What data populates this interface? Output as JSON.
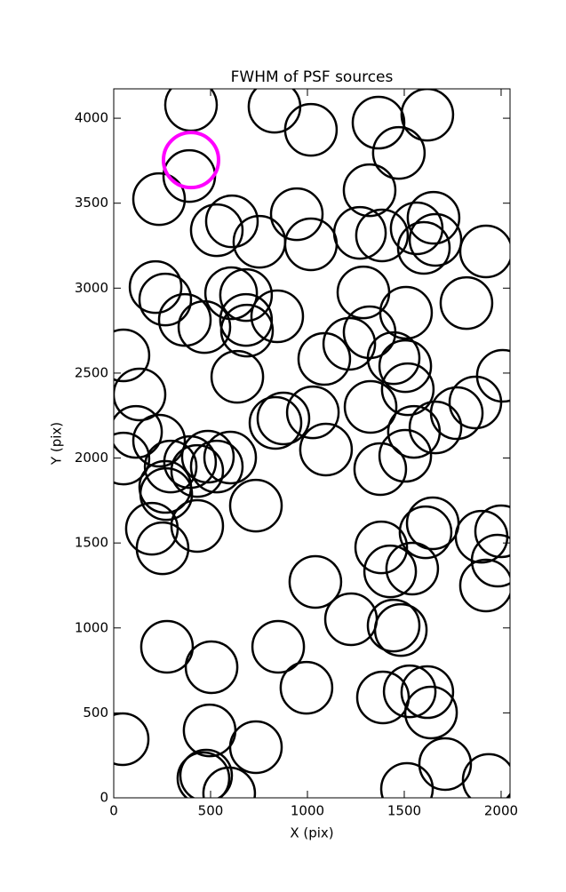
{
  "chart_data": {
    "type": "scatter",
    "title": "FWHM of PSF sources",
    "x_label": "X (pix)",
    "y_label": "Y (pix)",
    "xlim": [
      0,
      2046
    ],
    "ylim": [
      0,
      4173
    ],
    "xticks": [
      0,
      500,
      1000,
      1500,
      2000
    ],
    "yticks": [
      0,
      500,
      1000,
      1500,
      2000,
      2500,
      3000,
      3500,
      4000
    ],
    "series": [
      {
        "color": "#000000",
        "x": [
          399,
          830,
          1018,
          1367,
          1619,
          1472,
          1321,
          390,
          234,
          945,
          532,
          610,
          752,
          1018,
          1271,
          1385,
          1564,
          1651,
          1601,
          1661,
          1922,
          216,
          266,
          367,
          468,
          606,
          683,
          683,
          688,
          844,
          1289,
          1509,
          1821,
          50,
          1321,
          1216,
          1087,
          1445,
          1505,
          1518,
          2009,
          638,
          133,
          1867,
          1771,
          1326,
          1028,
          876,
          835,
          115,
          234,
          1550,
          1661,
          1096,
          1505,
          1376,
          50,
          294,
          394,
          431,
          486,
          532,
          601,
          266,
          271,
          734,
          197,
          252,
          431,
          1647,
          1610,
          1381,
          1427,
          1541,
          1899,
          2000,
          1982,
          1922,
          1041,
          1225,
          1445,
          1482,
          275,
          849,
          505,
          995,
          1390,
          1528,
          1619,
          1638,
          46,
          495,
          734,
          1711,
          477,
          463,
          596,
          1514,
          1936
        ],
        "values": [
          4078,
          4068,
          3932,
          3974,
          4021,
          3796,
          3576,
          3660,
          3524,
          3435,
          3341,
          3393,
          3273,
          3258,
          3325,
          3310,
          3352,
          3414,
          3237,
          3284,
          3216,
          3006,
          2933,
          2813,
          2771,
          2970,
          2959,
          2813,
          2750,
          2834,
          2975,
          2855,
          2912,
          2604,
          2740,
          2672,
          2583,
          2588,
          2541,
          2405,
          2484,
          2478,
          2374,
          2327,
          2264,
          2301,
          2269,
          2233,
          2207,
          2154,
          2102,
          2154,
          2180,
          2050,
          2013,
          1935,
          1997,
          1950,
          1976,
          1924,
          2008,
          1950,
          2003,
          1830,
          1788,
          1720,
          1584,
          1469,
          1600,
          1616,
          1563,
          1474,
          1333,
          1349,
          1537,
          1569,
          1396,
          1250,
          1271,
          1051,
          1014,
          988,
          889,
          889,
          769,
          648,
          591,
          627,
          622,
          502,
          345,
          397,
          298,
          199,
          131,
          115,
          26,
          52,
          105
        ]
      },
      {
        "color": "#ff00ff",
        "x": [
          399
        ],
        "values": [
          3754
        ]
      }
    ]
  }
}
